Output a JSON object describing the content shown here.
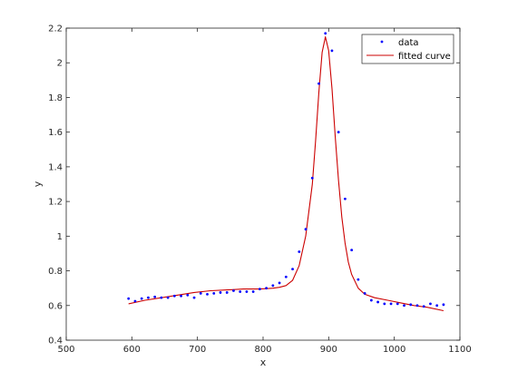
{
  "chart_data": {
    "type": "scatter",
    "xlabel": "x",
    "ylabel": "y",
    "xlim": [
      500,
      1100
    ],
    "ylim": [
      0.4,
      2.2
    ],
    "xticks": [
      500,
      600,
      700,
      800,
      900,
      1000,
      1100
    ],
    "xtick_labels": [
      "500",
      "600",
      "700",
      "800",
      "900",
      "1000",
      "1100"
    ],
    "yticks": [
      0.4,
      0.6,
      0.8,
      1.0,
      1.2,
      1.4,
      1.6,
      1.8,
      2.0,
      2.2
    ],
    "ytick_labels": [
      "0.4",
      "0.6",
      "0.8",
      "1",
      "1.2",
      "1.4",
      "1.6",
      "1.8",
      "2",
      "2.2"
    ],
    "grid": false,
    "legend_position": "top-right",
    "series": [
      {
        "name": "data",
        "kind": "markers",
        "color": "#0000ff",
        "x": [
          595,
          605,
          615,
          625,
          635,
          645,
          655,
          665,
          675,
          685,
          695,
          705,
          715,
          725,
          735,
          745,
          755,
          765,
          775,
          785,
          795,
          805,
          815,
          825,
          835,
          845,
          855,
          865,
          875,
          885,
          895,
          905,
          915,
          925,
          935,
          945,
          955,
          965,
          975,
          985,
          995,
          1005,
          1015,
          1025,
          1035,
          1045,
          1055,
          1065,
          1075
        ],
        "y": [
          0.64,
          0.625,
          0.64,
          0.645,
          0.65,
          0.645,
          0.645,
          0.655,
          0.655,
          0.66,
          0.645,
          0.67,
          0.665,
          0.67,
          0.675,
          0.675,
          0.685,
          0.68,
          0.68,
          0.68,
          0.695,
          0.7,
          0.715,
          0.73,
          0.765,
          0.81,
          0.91,
          1.04,
          1.335,
          1.88,
          2.17,
          2.07,
          1.6,
          1.215,
          0.92,
          0.75,
          0.67,
          0.63,
          0.62,
          0.61,
          0.61,
          0.61,
          0.6,
          0.605,
          0.6,
          0.595,
          0.61,
          0.6,
          0.605
        ]
      },
      {
        "name": "fitted curve",
        "kind": "line",
        "color": "#cc0000",
        "x": [
          595,
          620,
          645,
          670,
          695,
          720,
          745,
          770,
          795,
          805,
          815,
          825,
          835,
          845,
          855,
          865,
          875,
          880,
          885,
          890,
          895,
          900,
          905,
          910,
          915,
          920,
          925,
          930,
          935,
          945,
          955,
          970,
          990,
          1010,
          1030,
          1050,
          1075
        ],
        "y": [
          0.61,
          0.63,
          0.645,
          0.66,
          0.675,
          0.685,
          0.69,
          0.695,
          0.695,
          0.697,
          0.7,
          0.705,
          0.715,
          0.745,
          0.83,
          1.0,
          1.3,
          1.55,
          1.83,
          2.06,
          2.15,
          2.07,
          1.85,
          1.57,
          1.32,
          1.11,
          0.96,
          0.85,
          0.78,
          0.7,
          0.665,
          0.645,
          0.63,
          0.615,
          0.6,
          0.59,
          0.57
        ]
      }
    ]
  }
}
